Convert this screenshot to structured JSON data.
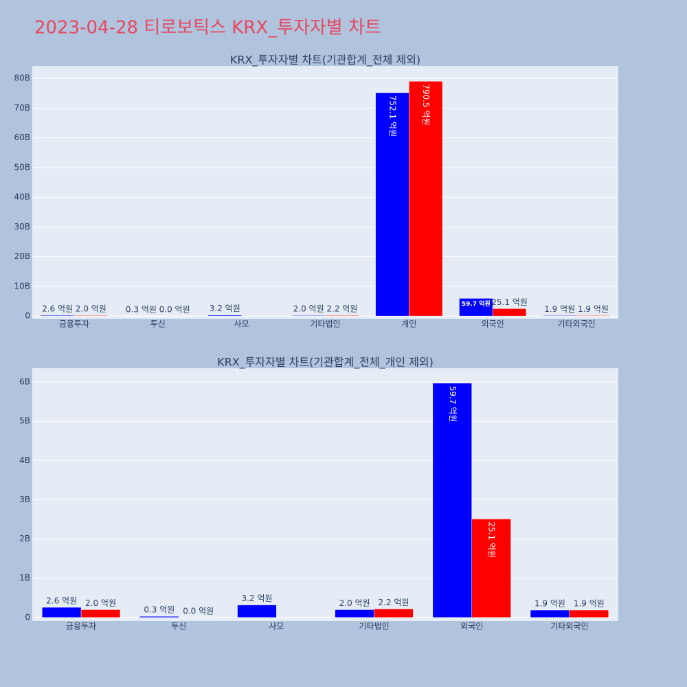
{
  "title": "2023-04-28 티로보틱스 KRX_투자자별 차트",
  "chart_data": [
    {
      "type": "bar",
      "title": "KRX_투자자별 차트(기관합계_전체 제외)",
      "categories": [
        "금융투자",
        "투신",
        "사모",
        "기타법인",
        "개인",
        "외국인",
        "기타외국인"
      ],
      "series": [
        {
          "color": "#0000ff",
          "values": [
            0.26,
            0.03,
            0.32,
            0.2,
            75.21,
            5.97,
            0.19
          ],
          "value_labels": [
            "2.6 억원",
            "0.3 억원",
            "3.2 억원",
            "2.0 억원",
            "752.1 억원",
            "59.7 억원",
            "1.9 억원"
          ]
        },
        {
          "color": "#ff0000",
          "values": [
            0.2,
            0.0,
            null,
            0.22,
            79.05,
            2.51,
            0.19
          ],
          "value_labels": [
            "2.0 억원",
            "0.0 억원",
            null,
            "2.2 억원",
            "790.5 억원",
            "25.1 억원",
            "1.9 억원"
          ]
        }
      ],
      "ylim": [
        -0.9,
        84.2
      ],
      "yticks": [
        0,
        {
          "value": 10,
          "label": "10B"
        },
        {
          "value": 20,
          "label": "20B"
        },
        {
          "value": 30,
          "label": "30B"
        },
        {
          "value": 40,
          "label": "40B"
        },
        {
          "value": 50,
          "label": "50B"
        },
        {
          "value": 60,
          "label": "60B"
        },
        {
          "value": 70,
          "label": "70B"
        },
        {
          "value": 80,
          "label": "80B"
        }
      ],
      "grid": true
    },
    {
      "type": "bar",
      "title": "KRX_투자자별 차트(기관합계_전체_개인 제외)",
      "categories": [
        "금융투자",
        "투신",
        "사모",
        "기타법인",
        "외국인",
        "기타외국인"
      ],
      "series": [
        {
          "color": "#0000ff",
          "values": [
            0.26,
            0.03,
            0.32,
            0.2,
            5.97,
            0.19
          ],
          "value_labels": [
            "2.6 억원",
            "0.3 억원",
            "3.2 억원",
            "2.0 억원",
            "59.7 억원",
            "1.9 억원"
          ]
        },
        {
          "color": "#ff0000",
          "values": [
            0.2,
            0.0,
            null,
            0.22,
            2.51,
            0.19
          ],
          "value_labels": [
            "2.0 억원",
            "0.0 억원",
            null,
            "2.2 억원",
            "25.1 억원",
            "1.9 억원"
          ]
        }
      ],
      "ylim": [
        -0.09,
        6.35
      ],
      "yticks": [
        0,
        {
          "value": 1,
          "label": "1B"
        },
        {
          "value": 2,
          "label": "2B"
        },
        {
          "value": 3,
          "label": "3B"
        },
        {
          "value": 4,
          "label": "4B"
        },
        {
          "value": 5,
          "label": "5B"
        },
        {
          "value": 6,
          "label": "6B"
        }
      ],
      "grid": true
    }
  ]
}
